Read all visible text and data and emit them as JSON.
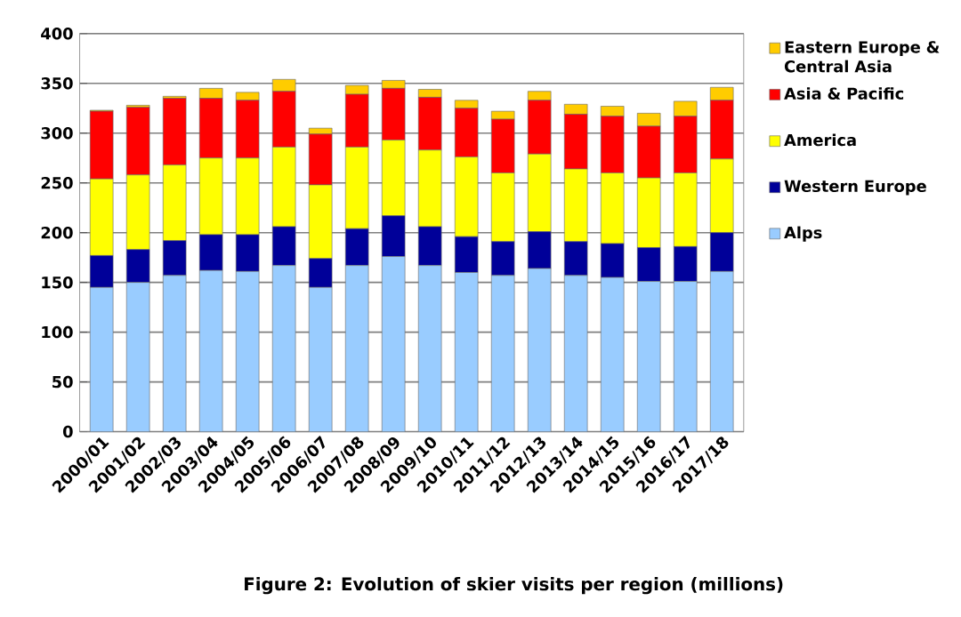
{
  "chart_data": {
    "type": "bar",
    "stacked": true,
    "title": "Figure 2: Evolution of skier visits per region (millions)",
    "categories": [
      "2000/01",
      "2001/02",
      "2002/03",
      "2003/04",
      "2004/05",
      "2005/06",
      "2006/07",
      "2007/08",
      "2008/09",
      "2009/10",
      "2010/11",
      "2011/12",
      "2012/13",
      "2013/14",
      "2014/15",
      "2015/16",
      "2016/17",
      "2017/18"
    ],
    "series": [
      {
        "name": "Alps",
        "color": "#99ccff",
        "values": [
          145,
          150,
          157,
          162,
          161,
          167,
          145,
          167,
          176,
          167,
          160,
          157,
          164,
          157,
          155,
          151,
          151,
          161
        ]
      },
      {
        "name": "Western Europe",
        "color": "#000099",
        "values": [
          32,
          33,
          35,
          36,
          37,
          39,
          29,
          37,
          41,
          39,
          36,
          34,
          37,
          34,
          34,
          34,
          35,
          39
        ]
      },
      {
        "name": "America",
        "color": "#ffff00",
        "values": [
          77,
          75,
          76,
          77,
          77,
          80,
          74,
          82,
          76,
          77,
          80,
          69,
          78,
          73,
          71,
          70,
          74,
          74
        ]
      },
      {
        "name": "Asia & Pacific",
        "color": "#ff0000",
        "values": [
          68,
          68,
          67,
          60,
          58,
          56,
          51,
          53,
          52,
          53,
          49,
          54,
          54,
          55,
          57,
          52,
          57,
          59
        ]
      },
      {
        "name": "Eastern Europe & Central Asia",
        "color": "#ffcc00",
        "values": [
          1,
          2,
          2,
          10,
          8,
          12,
          6,
          9,
          8,
          8,
          8,
          8,
          9,
          10,
          10,
          13,
          15,
          13
        ]
      }
    ],
    "ylim": [
      0,
      400
    ],
    "yticks": [
      0,
      50,
      100,
      150,
      200,
      250,
      300,
      350,
      400
    ],
    "grid": "y",
    "legend": "right"
  }
}
